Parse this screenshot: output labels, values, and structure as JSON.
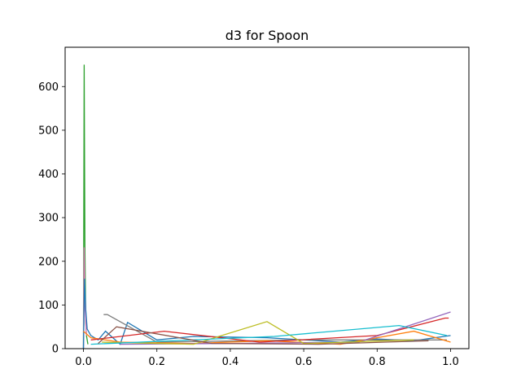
{
  "chart_data": {
    "type": "line",
    "title": "d3 for Spoon",
    "xlabel": "",
    "ylabel": "",
    "xlim": [
      -0.05,
      1.05
    ],
    "ylim": [
      0,
      690
    ],
    "grid": false,
    "x_ticks": [
      0.0,
      0.2,
      0.4,
      0.6,
      0.8,
      1.0
    ],
    "x_tick_labels": [
      "0.0",
      "0.2",
      "0.4",
      "0.6",
      "0.8",
      "1.0"
    ],
    "y_ticks": [
      0,
      100,
      200,
      300,
      400,
      500,
      600
    ],
    "y_tick_labels": [
      "0",
      "100",
      "200",
      "300",
      "400",
      "500",
      "600"
    ],
    "series_colors": [
      "#1f77b4",
      "#ff7f0e",
      "#2ca02c",
      "#d62728",
      "#9467bd",
      "#8c564b",
      "#e377c2",
      "#7f7f7f",
      "#bcbd22",
      "#17becf"
    ],
    "series": [
      {
        "color": "#2ca02c",
        "x": [
          0.0,
          0.002,
          0.004,
          0.006,
          0.008,
          0.012
        ],
        "values": [
          0,
          650,
          230,
          60,
          30,
          10
        ]
      },
      {
        "color": "#e377c2",
        "x": [
          0.0,
          0.002,
          0.004,
          0.008
        ],
        "values": [
          0,
          232,
          100,
          30
        ]
      },
      {
        "color": "#1f77b4",
        "x": [
          0.0,
          0.003,
          0.006,
          0.01,
          0.02,
          0.04,
          0.06,
          0.1,
          0.12,
          0.2,
          0.3,
          0.5,
          0.7,
          0.8,
          0.9,
          1.0
        ],
        "values": [
          0,
          160,
          90,
          45,
          30,
          20,
          40,
          10,
          60,
          20,
          28,
          25,
          15,
          22,
          18,
          30
        ]
      },
      {
        "color": "#7f7f7f",
        "x": [
          0.055,
          0.065,
          0.2,
          0.6,
          0.99
        ],
        "values": [
          78,
          78,
          15,
          20,
          20
        ]
      },
      {
        "color": "#ff7f0e",
        "x": [
          0.0,
          0.02,
          0.1,
          0.3,
          0.5,
          0.7,
          0.9,
          1.0
        ],
        "values": [
          40,
          25,
          15,
          12,
          18,
          10,
          40,
          15
        ]
      },
      {
        "color": "#d62728",
        "x": [
          0.02,
          0.22,
          0.48,
          0.8,
          0.985,
          0.995
        ],
        "values": [
          20,
          40,
          15,
          30,
          70,
          70
        ]
      },
      {
        "color": "#9467bd",
        "x": [
          0.1,
          0.4,
          0.75,
          1.0
        ],
        "values": [
          10,
          12,
          15,
          84
        ]
      },
      {
        "color": "#bcbd22",
        "x": [
          0.05,
          0.3,
          0.5,
          0.6,
          0.9
        ],
        "values": [
          15,
          10,
          62,
          12,
          20
        ]
      },
      {
        "color": "#17becf",
        "x": [
          0.02,
          0.52,
          0.86,
          0.99
        ],
        "values": [
          10,
          28,
          53,
          30
        ]
      },
      {
        "color": "#8c564b",
        "x": [
          0.04,
          0.09,
          0.35,
          0.64,
          0.94
        ],
        "values": [
          12,
          50,
          12,
          10,
          18
        ]
      }
    ]
  }
}
